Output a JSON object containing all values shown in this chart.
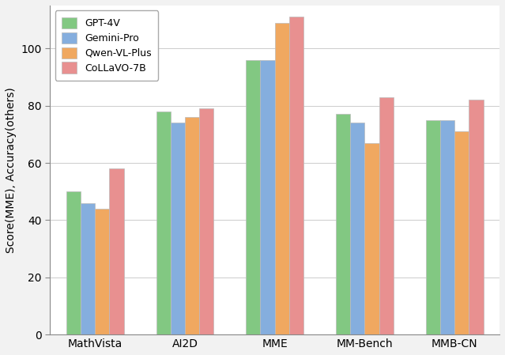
{
  "categories": [
    "MathVista",
    "AI2D",
    "MME",
    "MM-Bench",
    "MMB-CN"
  ],
  "series": [
    {
      "label": "GPT-4V",
      "values": [
        50,
        78,
        96,
        77,
        75
      ],
      "color": "#82C882"
    },
    {
      "label": "Gemini-Pro",
      "values": [
        46,
        74,
        96,
        74,
        75
      ],
      "color": "#85AEDE"
    },
    {
      "label": "Qwen-VL-Plus",
      "values": [
        44,
        76,
        109,
        67,
        71
      ],
      "color": "#F0A860"
    },
    {
      "label": "CoLLaVO-7B",
      "values": [
        58,
        79,
        111,
        83,
        82
      ],
      "color": "#E89090"
    }
  ],
  "ylabel": "Score(MME), Accuracy(others)",
  "ylim": [
    0,
    115
  ],
  "yticks": [
    0,
    20,
    40,
    60,
    80,
    100
  ],
  "plot_bg": "#ffffff",
  "fig_bg": "#f2f2f2",
  "bar_width": 0.16,
  "group_width": 1.0
}
